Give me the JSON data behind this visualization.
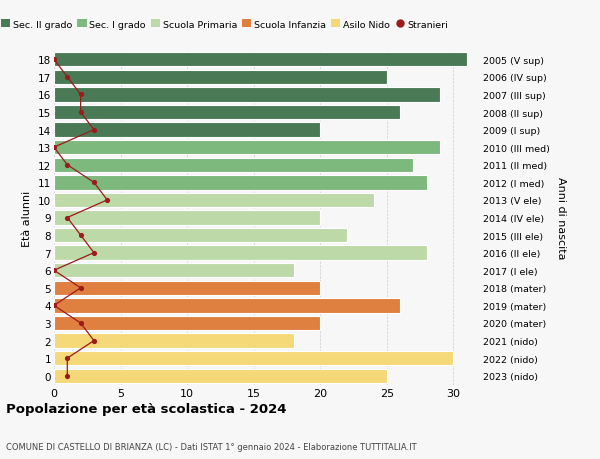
{
  "ages": [
    18,
    17,
    16,
    15,
    14,
    13,
    12,
    11,
    10,
    9,
    8,
    7,
    6,
    5,
    4,
    3,
    2,
    1,
    0
  ],
  "right_labels": [
    "2005 (V sup)",
    "2006 (IV sup)",
    "2007 (III sup)",
    "2008 (II sup)",
    "2009 (I sup)",
    "2010 (III med)",
    "2011 (II med)",
    "2012 (I med)",
    "2013 (V ele)",
    "2014 (IV ele)",
    "2015 (III ele)",
    "2016 (II ele)",
    "2017 (I ele)",
    "2018 (mater)",
    "2019 (mater)",
    "2020 (mater)",
    "2021 (nido)",
    "2022 (nido)",
    "2023 (nido)"
  ],
  "bar_values": [
    31,
    25,
    29,
    26,
    20,
    29,
    27,
    28,
    24,
    20,
    22,
    28,
    18,
    20,
    26,
    20,
    18,
    30,
    25
  ],
  "bar_colors": [
    "#4a7a55",
    "#4a7a55",
    "#4a7a55",
    "#4a7a55",
    "#4a7a55",
    "#7db87d",
    "#7db87d",
    "#7db87d",
    "#bdd9a8",
    "#bdd9a8",
    "#bdd9a8",
    "#bdd9a8",
    "#bdd9a8",
    "#e08040",
    "#e08040",
    "#e08040",
    "#f5d878",
    "#f5d878",
    "#f5d878"
  ],
  "stranieri_values": [
    0,
    1,
    2,
    2,
    3,
    0,
    1,
    3,
    4,
    1,
    2,
    3,
    0,
    2,
    0,
    2,
    3,
    1,
    1
  ],
  "stranieri_color": "#9b1a1a",
  "legend_labels": [
    "Sec. II grado",
    "Sec. I grado",
    "Scuola Primaria",
    "Scuola Infanzia",
    "Asilo Nido",
    "Stranieri"
  ],
  "legend_colors": [
    "#4a7a55",
    "#7db87d",
    "#bdd9a8",
    "#e08040",
    "#f5d878",
    "#9b1a1a"
  ],
  "title": "Popolazione per età scolastica - 2024",
  "subtitle": "COMUNE DI CASTELLO DI BRIANZA (LC) - Dati ISTAT 1° gennaio 2024 - Elaborazione TUTTITALIA.IT",
  "ylabel_left": "Età alunni",
  "ylabel_right": "Anni di nascita",
  "xlim": [
    0,
    32
  ],
  "bar_height": 0.82,
  "background_color": "#f7f7f7",
  "grid_color": "#cccccc",
  "separator_color": "#ffffff"
}
